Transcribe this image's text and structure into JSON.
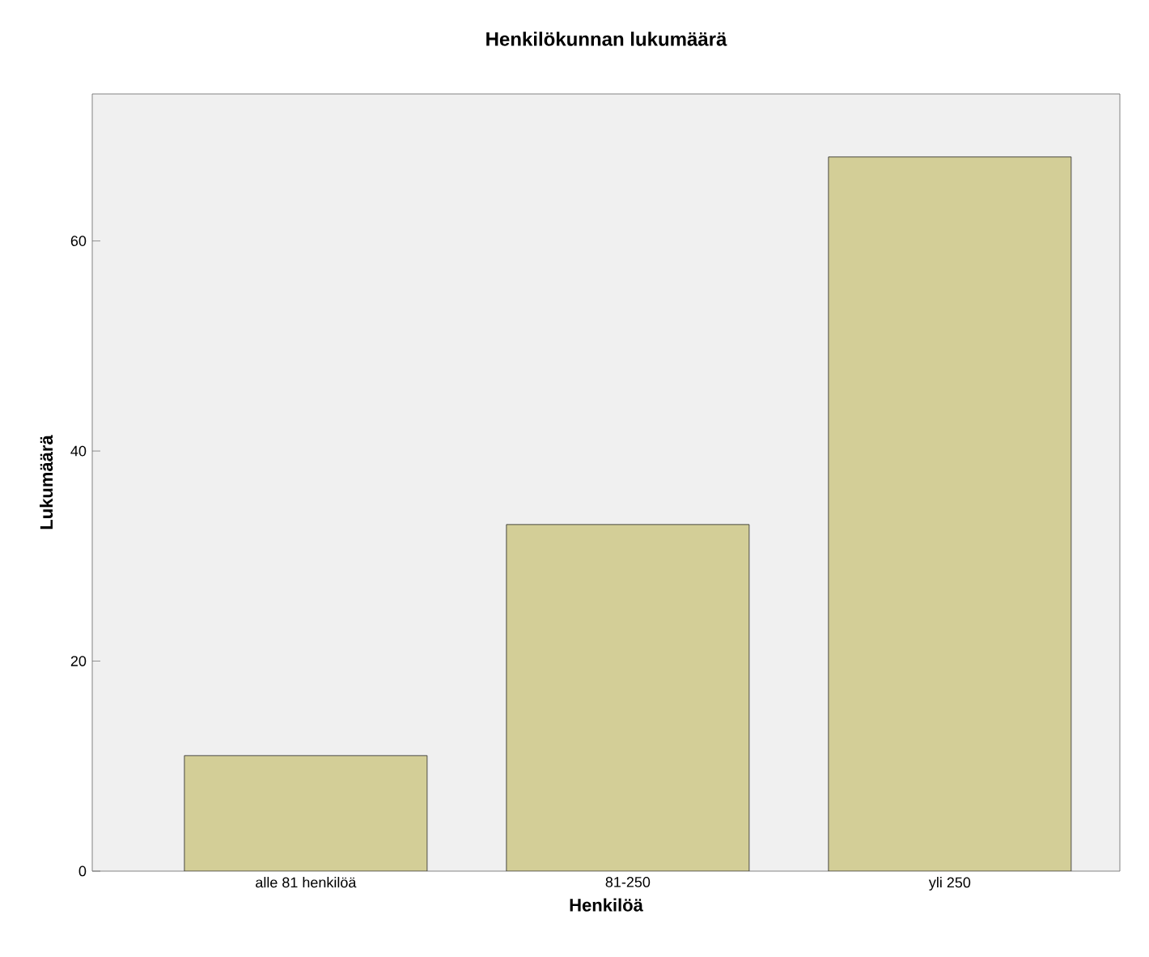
{
  "chart_data": {
    "type": "bar",
    "title": "Henkilökunnan lukumäärä",
    "xlabel": "Henkilöä",
    "ylabel": "Lukumäärä",
    "categories": [
      "alle 81 henkilöä",
      "81-250",
      "yli 250"
    ],
    "values": [
      11,
      33,
      68
    ],
    "color": "#d3ce97",
    "ylim": [
      0,
      74
    ],
    "yticks": [
      0,
      20,
      40,
      60
    ]
  }
}
